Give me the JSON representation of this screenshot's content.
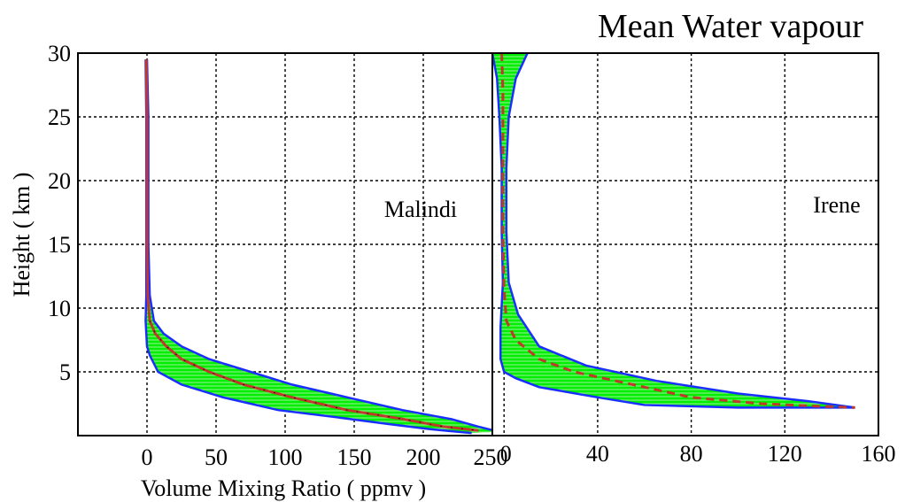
{
  "chart_data": {
    "type": "line",
    "title": "Mean Water vapour",
    "xlabel": "Volume Mixing Ratio ( ppmv )",
    "ylabel": "Height ( km )",
    "grid": true,
    "y_ticks": [
      5,
      10,
      15,
      20,
      25,
      30
    ],
    "ylim": [
      0,
      30
    ],
    "panels": [
      {
        "label": "Malindi",
        "xlim": [
          -50,
          250
        ],
        "x_ticks": [
          0,
          50,
          100,
          150,
          200,
          250
        ],
        "mean": [
          [
            -0.5,
            29.5
          ],
          [
            0,
            25
          ],
          [
            0,
            20
          ],
          [
            0,
            15
          ],
          [
            0.5,
            11
          ],
          [
            2,
            9
          ],
          [
            6,
            8
          ],
          [
            14,
            7
          ],
          [
            25,
            6
          ],
          [
            45,
            5
          ],
          [
            70,
            4
          ],
          [
            105,
            3
          ],
          [
            145,
            2
          ],
          [
            185,
            1.3
          ],
          [
            215,
            0.7
          ],
          [
            240,
            0.4
          ]
        ],
        "upper": [
          [
            0,
            29.5
          ],
          [
            1,
            25
          ],
          [
            1,
            20
          ],
          [
            1,
            15
          ],
          [
            2,
            11
          ],
          [
            5,
            9
          ],
          [
            12,
            8
          ],
          [
            25,
            7
          ],
          [
            45,
            6
          ],
          [
            75,
            5
          ],
          [
            105,
            4
          ],
          [
            145,
            3
          ],
          [
            185,
            2
          ],
          [
            220,
            1.3
          ],
          [
            240,
            0.7
          ],
          [
            255,
            0.3
          ]
        ],
        "lower": [
          [
            -1,
            29.5
          ],
          [
            -0.5,
            25
          ],
          [
            -0.5,
            20
          ],
          [
            -0.5,
            15
          ],
          [
            -0.5,
            11
          ],
          [
            -1,
            9
          ],
          [
            0,
            7
          ],
          [
            2,
            6.3
          ],
          [
            8,
            5
          ],
          [
            25,
            4
          ],
          [
            55,
            3
          ],
          [
            95,
            2
          ],
          [
            140,
            1.4
          ],
          [
            175,
            0.9
          ],
          [
            205,
            0.5
          ],
          [
            235,
            0.2
          ]
        ]
      },
      {
        "label": "Irene",
        "xlim": [
          -5,
          160
        ],
        "x_ticks": [
          0,
          40,
          80,
          120,
          160
        ],
        "mean": [
          [
            -1,
            30
          ],
          [
            -0.5,
            27
          ],
          [
            -0.5,
            22
          ],
          [
            -0.5,
            16
          ],
          [
            0,
            11.5
          ],
          [
            1,
            9
          ],
          [
            5,
            7.5
          ],
          [
            15,
            6
          ],
          [
            30,
            5
          ],
          [
            55,
            4
          ],
          [
            80,
            3
          ],
          [
            110,
            2.5
          ],
          [
            135,
            2.3
          ],
          [
            150,
            2.2
          ]
        ],
        "upper": [
          [
            10,
            30
          ],
          [
            5,
            28
          ],
          [
            2,
            25
          ],
          [
            1,
            21
          ],
          [
            1,
            16
          ],
          [
            2,
            12
          ],
          [
            6,
            9.5
          ],
          [
            15,
            7
          ],
          [
            35,
            5.5
          ],
          [
            65,
            4.3
          ],
          [
            100,
            3.3
          ],
          [
            130,
            2.7
          ],
          [
            150,
            2.2
          ]
        ],
        "lower": [
          [
            -5,
            30
          ],
          [
            -3,
            28
          ],
          [
            -2,
            25
          ],
          [
            -1,
            21
          ],
          [
            -1,
            16
          ],
          [
            -0.5,
            12
          ],
          [
            -1.5,
            8.5
          ],
          [
            -1.5,
            6
          ],
          [
            0,
            5
          ],
          [
            5,
            4.5
          ],
          [
            15,
            3.8
          ],
          [
            40,
            3
          ],
          [
            60,
            2.4
          ],
          [
            100,
            2.2
          ],
          [
            150,
            2.2
          ]
        ]
      }
    ]
  },
  "colors": {
    "fill": "#00ee00",
    "band_lines": "#9ff09f",
    "edge": "#1a2fff",
    "mean": "#c0392b"
  }
}
